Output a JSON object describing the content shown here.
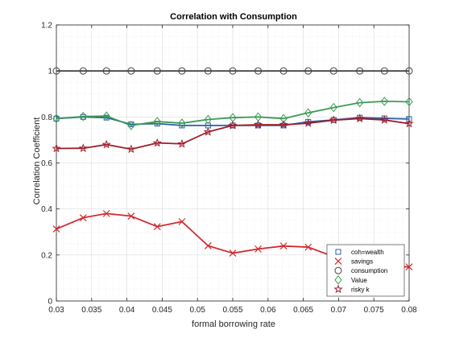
{
  "chart_data": {
    "type": "line",
    "title": "Correlation with Consumption",
    "xlabel": "formal borrowing rate",
    "ylabel": "Correlation Coefficient",
    "xlim": [
      0.03,
      0.08
    ],
    "ylim": [
      0,
      1.2
    ],
    "x_ticks": [
      0.03,
      0.035,
      0.04,
      0.045,
      0.05,
      0.055,
      0.06,
      0.065,
      0.07,
      0.075,
      0.08
    ],
    "x_tick_labels": [
      "0.03",
      "0.035",
      "0.04",
      "0.045",
      "0.05",
      "0.055",
      "0.06",
      "0.065",
      "0.07",
      "0.075",
      "0.08"
    ],
    "y_ticks": [
      0,
      0.2,
      0.4,
      0.6,
      0.8,
      1,
      1.2
    ],
    "y_tick_labels": [
      "0",
      "0.2",
      "0.4",
      "0.6",
      "0.8",
      "1",
      "1.2"
    ],
    "grid": true,
    "legend_position": "bottom-right",
    "x": [
      0.03,
      0.0338,
      0.0371,
      0.0406,
      0.0443,
      0.0478,
      0.0515,
      0.055,
      0.0586,
      0.0622,
      0.0657,
      0.0693,
      0.073,
      0.0765,
      0.08
    ],
    "series": [
      {
        "name": "coh=wealth",
        "color": "#2a5fa8",
        "marker": "square",
        "values": [
          0.793,
          0.8,
          0.797,
          0.768,
          0.771,
          0.763,
          0.763,
          0.763,
          0.763,
          0.763,
          0.779,
          0.787,
          0.797,
          0.794,
          0.791
        ]
      },
      {
        "name": "savings",
        "color": "#d42a2f",
        "marker": "x",
        "values": [
          0.313,
          0.362,
          0.38,
          0.369,
          0.323,
          0.345,
          0.24,
          0.208,
          0.226,
          0.239,
          0.234,
          0.193,
          0.194,
          0.152,
          0.148
        ]
      },
      {
        "name": "consumption",
        "color": "#444444",
        "marker": "circle",
        "values": [
          1,
          1,
          1,
          1,
          1,
          1,
          1,
          1,
          1,
          1,
          1,
          1,
          1,
          1,
          1
        ]
      },
      {
        "name": "Value",
        "color": "#3f9b55",
        "marker": "diamond",
        "values": [
          0.793,
          0.802,
          0.804,
          0.763,
          0.78,
          0.773,
          0.789,
          0.797,
          0.8,
          0.793,
          0.818,
          0.841,
          0.862,
          0.868,
          0.866
        ]
      },
      {
        "name": "risky k",
        "color": "#a01d2a",
        "marker": "star",
        "values": [
          0.663,
          0.664,
          0.68,
          0.66,
          0.687,
          0.683,
          0.735,
          0.763,
          0.766,
          0.766,
          0.773,
          0.786,
          0.793,
          0.787,
          0.771
        ]
      }
    ]
  }
}
